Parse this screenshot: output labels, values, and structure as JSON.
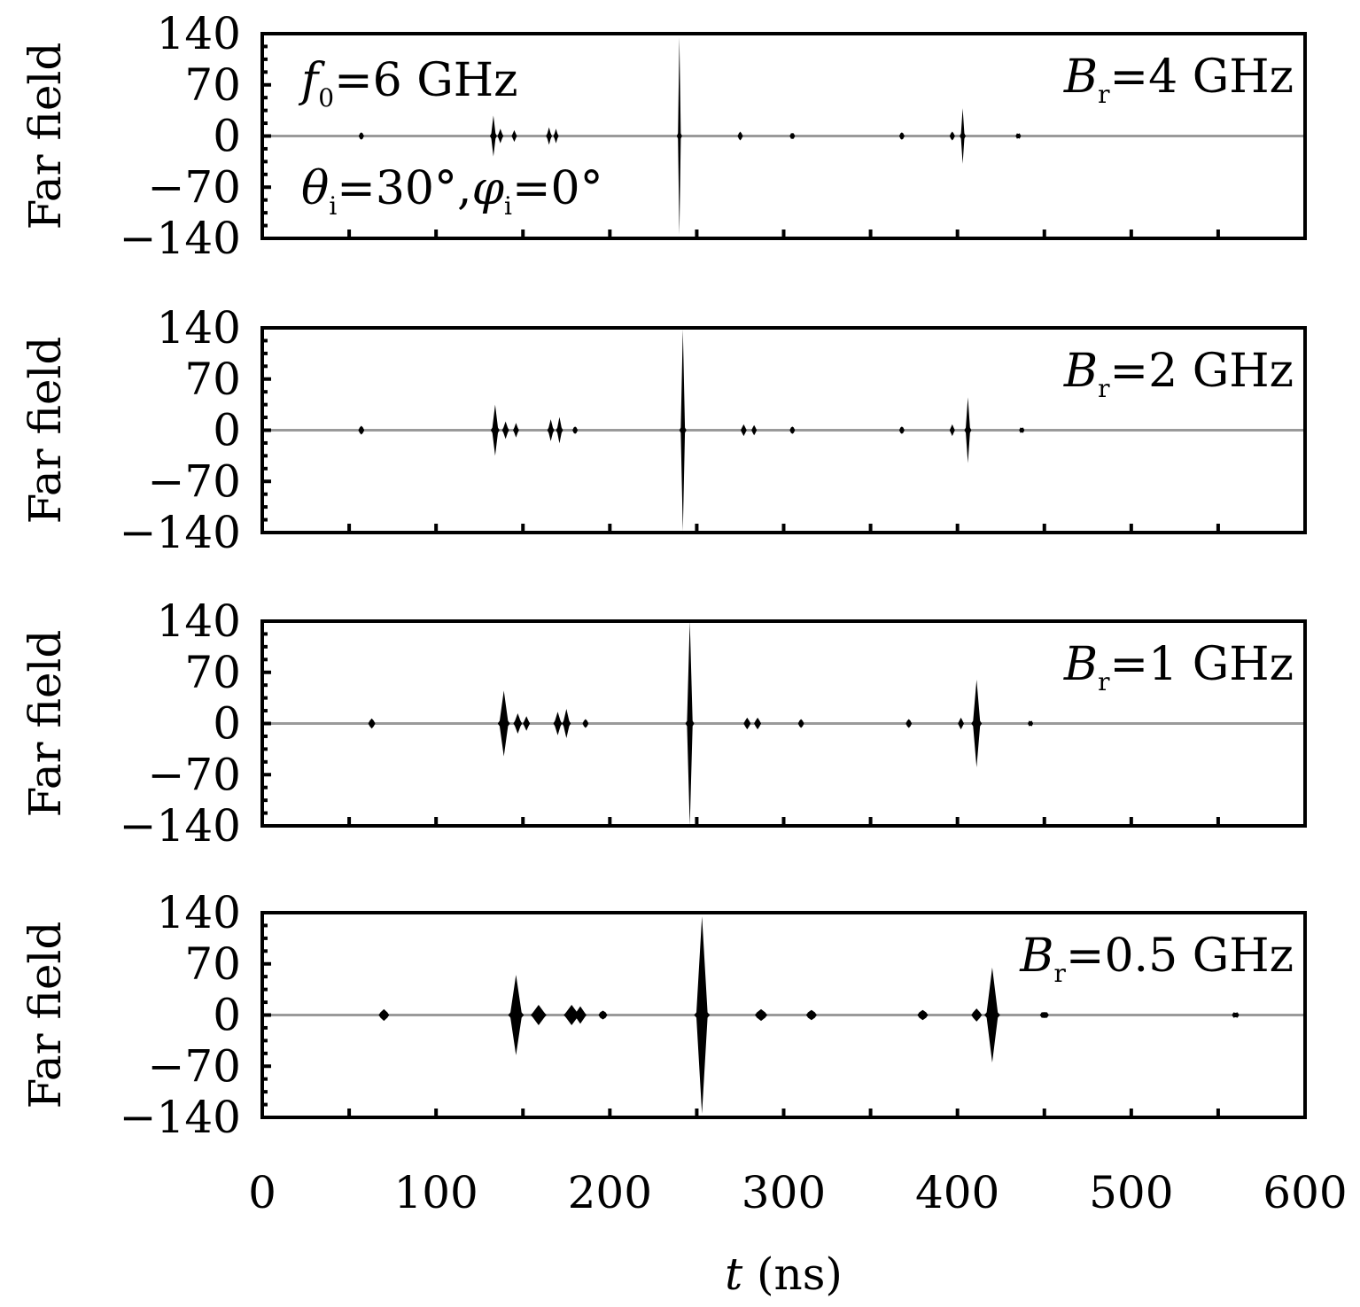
{
  "chart_data": [
    {
      "type": "line",
      "ylabel": "Far field",
      "xlim": [
        0,
        600
      ],
      "ylim": [
        -140,
        140
      ],
      "yticks": [
        "140",
        "70",
        "0",
        "−70",
        "−140"
      ],
      "annotation": {
        "var": "B",
        "sub": "r",
        "text": "=4 GHz"
      },
      "extra_annotations": [
        {
          "var": "f",
          "sub": "0",
          "text": "=6 GHz"
        },
        {
          "var": "θ",
          "sub": "i",
          "text": "=30°,",
          "var2": "φ",
          "sub2": "i",
          "text2": "=0°"
        }
      ],
      "pulses": [
        {
          "t": 57,
          "amp": 5,
          "width": 1.0
        },
        {
          "t": 133,
          "amp": 28,
          "width": 1.5
        },
        {
          "t": 137,
          "amp": 10,
          "width": 1.2
        },
        {
          "t": 145,
          "amp": 8,
          "width": 1.0
        },
        {
          "t": 165,
          "amp": 12,
          "width": 1.2
        },
        {
          "t": 169,
          "amp": 10,
          "width": 1.0
        },
        {
          "t": 240,
          "amp": 135,
          "width": 1.0
        },
        {
          "t": 275,
          "amp": 6,
          "width": 1.0
        },
        {
          "t": 305,
          "amp": 4,
          "width": 1.0
        },
        {
          "t": 368,
          "amp": 5,
          "width": 1.0
        },
        {
          "t": 397,
          "amp": 6,
          "width": 1.0
        },
        {
          "t": 403,
          "amp": 38,
          "width": 1.2
        },
        {
          "t": 435,
          "amp": 3,
          "width": 1.0
        }
      ]
    },
    {
      "type": "line",
      "ylabel": "Far field",
      "xlim": [
        0,
        600
      ],
      "ylim": [
        -140,
        140
      ],
      "yticks": [
        "140",
        "70",
        "0",
        "−70",
        "−140"
      ],
      "annotation": {
        "var": "B",
        "sub": "r",
        "text": "=2 GHz"
      },
      "pulses": [
        {
          "t": 57,
          "amp": 6,
          "width": 1.2
        },
        {
          "t": 134,
          "amp": 35,
          "width": 2.0
        },
        {
          "t": 140,
          "amp": 12,
          "width": 1.5
        },
        {
          "t": 146,
          "amp": 10,
          "width": 1.2
        },
        {
          "t": 166,
          "amp": 15,
          "width": 1.5
        },
        {
          "t": 171,
          "amp": 18,
          "width": 1.5
        },
        {
          "t": 180,
          "amp": 5,
          "width": 1.0
        },
        {
          "t": 242,
          "amp": 138,
          "width": 1.5
        },
        {
          "t": 277,
          "amp": 8,
          "width": 1.2
        },
        {
          "t": 283,
          "amp": 7,
          "width": 1.0
        },
        {
          "t": 305,
          "amp": 5,
          "width": 1.0
        },
        {
          "t": 368,
          "amp": 5,
          "width": 1.0
        },
        {
          "t": 397,
          "amp": 8,
          "width": 1.0
        },
        {
          "t": 406,
          "amp": 45,
          "width": 1.5
        },
        {
          "t": 437,
          "amp": 3,
          "width": 1.0
        }
      ]
    },
    {
      "type": "line",
      "ylabel": "Far field",
      "xlim": [
        0,
        600
      ],
      "ylim": [
        -140,
        140
      ],
      "yticks": [
        "140",
        "70",
        "0",
        "−70",
        "−140"
      ],
      "annotation": {
        "var": "B",
        "sub": "r",
        "text": "=1 GHz"
      },
      "pulses": [
        {
          "t": 63,
          "amp": 7,
          "width": 1.5
        },
        {
          "t": 139,
          "amp": 45,
          "width": 3.0
        },
        {
          "t": 147,
          "amp": 14,
          "width": 2.0
        },
        {
          "t": 152,
          "amp": 10,
          "width": 1.5
        },
        {
          "t": 170,
          "amp": 16,
          "width": 2.0
        },
        {
          "t": 175,
          "amp": 20,
          "width": 2.0
        },
        {
          "t": 186,
          "amp": 6,
          "width": 1.2
        },
        {
          "t": 246,
          "amp": 140,
          "width": 2.0
        },
        {
          "t": 279,
          "amp": 8,
          "width": 1.5
        },
        {
          "t": 285,
          "amp": 8,
          "width": 1.5
        },
        {
          "t": 310,
          "amp": 6,
          "width": 1.2
        },
        {
          "t": 372,
          "amp": 6,
          "width": 1.2
        },
        {
          "t": 402,
          "amp": 8,
          "width": 1.2
        },
        {
          "t": 411,
          "amp": 60,
          "width": 2.5
        },
        {
          "t": 442,
          "amp": 3,
          "width": 1.0
        }
      ]
    },
    {
      "type": "line",
      "ylabel": "Far field",
      "xlabel": "t (ns)",
      "xlim": [
        0,
        600
      ],
      "ylim": [
        -140,
        140
      ],
      "xticks": [
        "0",
        "100",
        "200",
        "300",
        "400",
        "500",
        "600"
      ],
      "yticks": [
        "140",
        "70",
        "0",
        "−70",
        "−140"
      ],
      "annotation": {
        "var": "B",
        "sub": "r",
        "text": "=0.5 GHz"
      },
      "pulses": [
        {
          "t": 70,
          "amp": 8,
          "width": 2.5
        },
        {
          "t": 146,
          "amp": 55,
          "width": 4.0
        },
        {
          "t": 159,
          "amp": 14,
          "width": 4.0
        },
        {
          "t": 178,
          "amp": 14,
          "width": 4.0
        },
        {
          "t": 183,
          "amp": 12,
          "width": 3.0
        },
        {
          "t": 196,
          "amp": 6,
          "width": 2.0
        },
        {
          "t": 253,
          "amp": 135,
          "width": 4.0
        },
        {
          "t": 287,
          "amp": 8,
          "width": 3.0
        },
        {
          "t": 316,
          "amp": 7,
          "width": 2.5
        },
        {
          "t": 380,
          "amp": 7,
          "width": 2.5
        },
        {
          "t": 411,
          "amp": 9,
          "width": 2.5
        },
        {
          "t": 420,
          "amp": 65,
          "width": 4.0
        },
        {
          "t": 450,
          "amp": 4,
          "width": 2.0
        },
        {
          "t": 560,
          "amp": 3,
          "width": 1.5
        }
      ]
    }
  ]
}
